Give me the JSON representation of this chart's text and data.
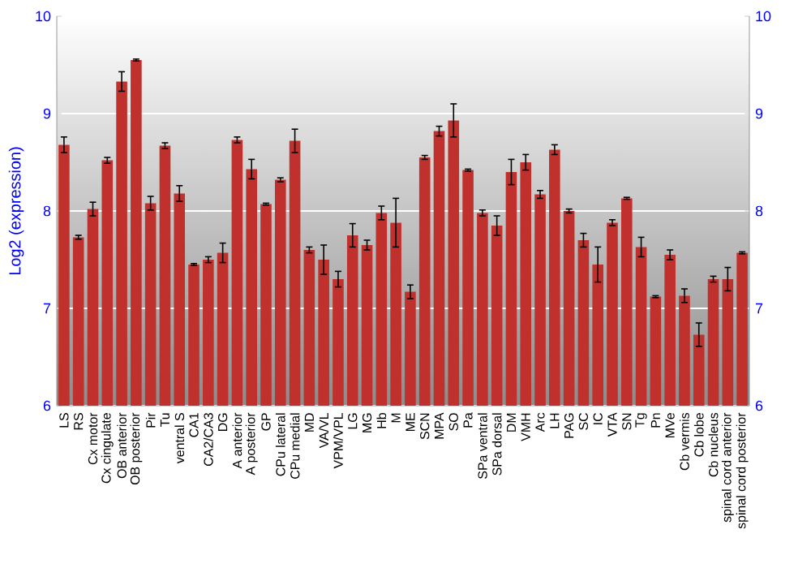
{
  "chart_data": {
    "type": "bar",
    "ylabel": "Log2 (expression)",
    "categories": [
      "LS",
      "RS",
      "Cx motor",
      "Cx cingulate",
      "OB anterior",
      "OB posterior",
      "Pir",
      "Tu",
      "ventral S",
      "CA1",
      "CA2/CA3",
      "DG",
      "A anterior",
      "A posterior",
      "GP",
      "CPu lateral",
      "CPu medial",
      "MD",
      "VA/VL",
      "VPM/VPL",
      "LG",
      "MG",
      "Hb",
      "M",
      "ME",
      "SCN",
      "MPA",
      "SO",
      "Pa",
      "SPa ventral",
      "SPa dorsal",
      "DM",
      "VMH",
      "Arc",
      "LH",
      "PAG",
      "SC",
      "IC",
      "VTA",
      "SN",
      "Tg",
      "Pn",
      "MVe",
      "Cb vermis",
      "Cb lobe",
      "Cb nucleus",
      "spinal cord anterior",
      "spinal cord posterior"
    ],
    "values": [
      8.68,
      7.73,
      8.02,
      8.52,
      9.33,
      9.55,
      8.08,
      8.67,
      8.18,
      7.45,
      7.5,
      7.57,
      8.73,
      8.43,
      8.07,
      8.32,
      8.72,
      7.6,
      7.5,
      7.3,
      7.75,
      7.65,
      7.98,
      7.88,
      7.17,
      8.55,
      8.82,
      8.93,
      8.42,
      7.98,
      7.85,
      8.4,
      8.5,
      8.17,
      8.63,
      8.0,
      7.7,
      7.45,
      7.88,
      8.13,
      7.63,
      7.12,
      7.55,
      7.13,
      6.73,
      7.3,
      7.3,
      7.57
    ],
    "errors": [
      0.08,
      0.02,
      0.07,
      0.03,
      0.1,
      0.01,
      0.07,
      0.03,
      0.08,
      0.01,
      0.03,
      0.1,
      0.03,
      0.1,
      0.01,
      0.02,
      0.12,
      0.03,
      0.15,
      0.08,
      0.12,
      0.05,
      0.07,
      0.25,
      0.07,
      0.02,
      0.05,
      0.17,
      0.01,
      0.03,
      0.1,
      0.13,
      0.08,
      0.04,
      0.05,
      0.02,
      0.07,
      0.18,
      0.03,
      0.01,
      0.1,
      0.01,
      0.05,
      0.07,
      0.12,
      0.03,
      0.12,
      0.01
    ],
    "color": "#c0302c",
    "ylim": [
      6,
      10
    ],
    "yticks": [
      6,
      7,
      8,
      9,
      10
    ],
    "y2lim": [
      6,
      10
    ],
    "y2ticks": [
      6,
      7,
      8,
      9,
      10
    ],
    "grid": "y"
  }
}
